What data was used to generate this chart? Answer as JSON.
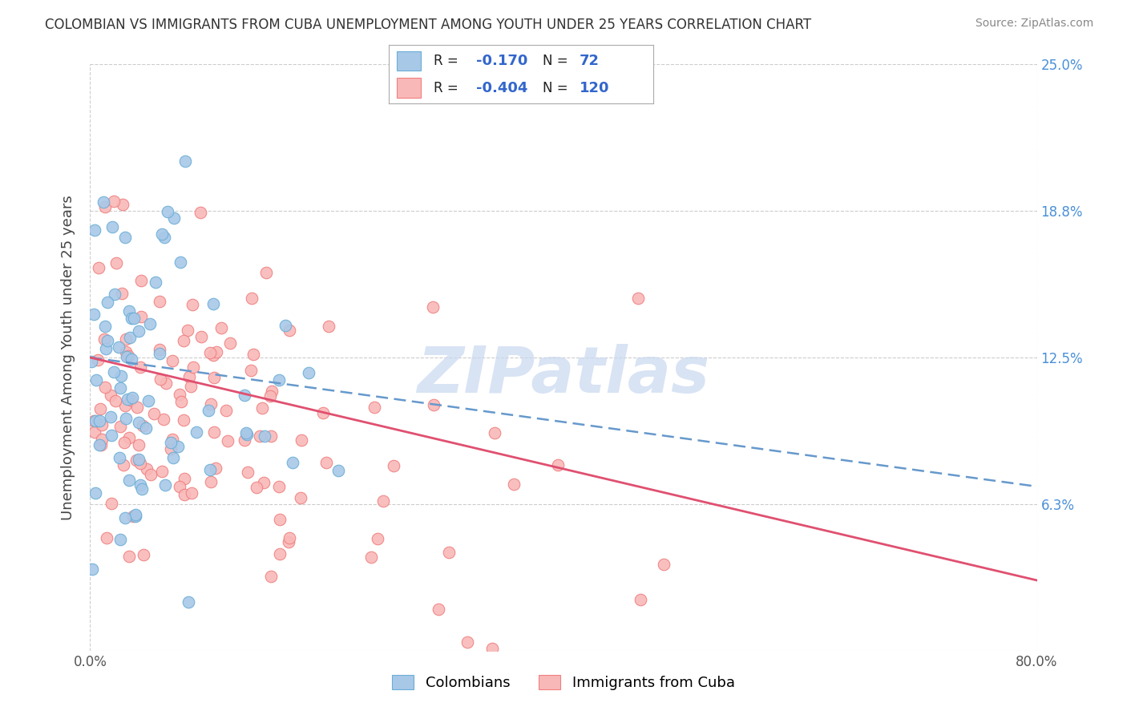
{
  "title": "COLOMBIAN VS IMMIGRANTS FROM CUBA UNEMPLOYMENT AMONG YOUTH UNDER 25 YEARS CORRELATION CHART",
  "source": "Source: ZipAtlas.com",
  "ylabel": "Unemployment Among Youth under 25 years",
  "xlim": [
    0.0,
    0.8
  ],
  "ylim": [
    0.0,
    0.25
  ],
  "ytick_vals": [
    0.0,
    0.0625,
    0.125,
    0.1875,
    0.25
  ],
  "ytick_labels": [
    "",
    "6.3%",
    "12.5%",
    "18.8%",
    "25.0%"
  ],
  "xtick_vals": [
    0.0,
    0.8
  ],
  "xtick_labels": [
    "0.0%",
    "80.0%"
  ],
  "colombians_R": "-0.170",
  "colombians_N": "72",
  "cuba_R": "-0.404",
  "cuba_N": "120",
  "blue_dot_face": "#a8c8e8",
  "blue_dot_edge": "#6baed6",
  "pink_dot_face": "#f9b8b8",
  "pink_dot_edge": "#f08080",
  "blue_line_color": "#6699cc",
  "pink_line_color": "#e05070",
  "watermark_color": "#c8d8f0",
  "legend_label_1": "Colombians",
  "legend_label_2": "Immigrants from Cuba",
  "grid_color": "#cccccc",
  "title_color": "#333333",
  "source_color": "#888888",
  "tick_color": "#555555",
  "ylabel_color": "#444444"
}
